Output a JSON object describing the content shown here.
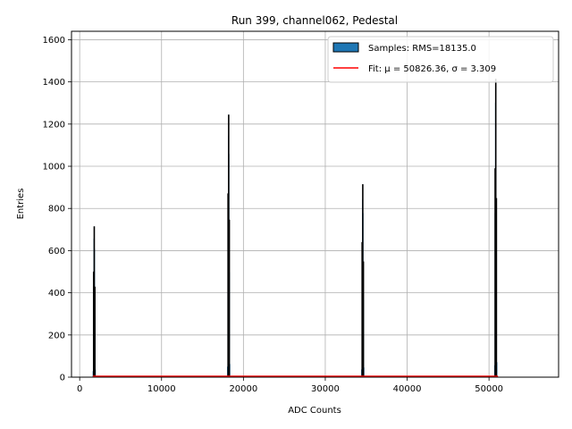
{
  "chart_data": {
    "type": "bar",
    "title": "Run 399, channel062, Pedestal",
    "xlabel": "ADC Counts",
    "ylabel": "Entries",
    "xlim": [
      -1000,
      58500
    ],
    "ylim": [
      0,
      1640
    ],
    "xticks": [
      0,
      10000,
      20000,
      30000,
      40000,
      50000
    ],
    "yticks": [
      0,
      200,
      400,
      600,
      800,
      1000,
      1200,
      1400,
      1600
    ],
    "grid": true,
    "legend_position": "top-right",
    "series": [
      {
        "name": "Samples: RMS=18135.0",
        "kind": "histogram",
        "color": "#1f77b4",
        "edge_color": "#000000",
        "peaks": [
          {
            "x": 1780,
            "height": 715
          },
          {
            "x": 18200,
            "height": 1245
          },
          {
            "x": 34580,
            "height": 915
          },
          {
            "x": 50826,
            "height": 1415
          }
        ]
      },
      {
        "name": "Fit: μ = 50826.36, σ = 3.309",
        "kind": "line",
        "color": "#ff0000",
        "x": [
          1600,
          51100
        ],
        "y": [
          0,
          0
        ]
      }
    ]
  }
}
